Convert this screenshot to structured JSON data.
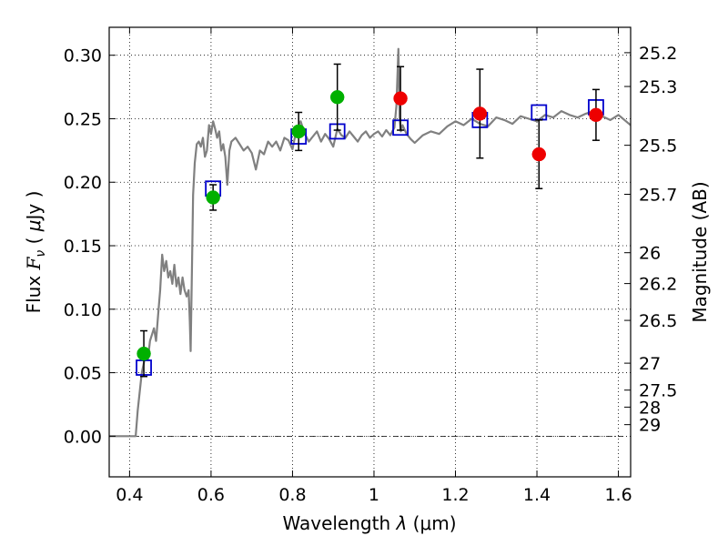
{
  "chart_data": {
    "type": "scatter",
    "xlabel": "Wavelength  λ (μm)",
    "ylabel": "Flux  F_ν  ( μJy )",
    "ylabel_parts": {
      "prefix": "Flux  ",
      "symbol": "F",
      "subscript": "ν",
      "open": "  ( ",
      "mu": "μ",
      "unit": "Jy )"
    },
    "xlabel_parts": {
      "prefix": "Wavelength  ",
      "lambda": "λ",
      "unit": " (μm)"
    },
    "y2label": "Magnitude (AB)",
    "xlim": [
      0.35,
      1.63
    ],
    "ylim": [
      -0.032,
      0.322
    ],
    "grid": true,
    "x_ticks": [
      0.4,
      0.6,
      0.8,
      1.0,
      1.2,
      1.4,
      1.6
    ],
    "x_tick_labels": [
      "0.4",
      "0.6",
      "0.8",
      "1",
      "1.2",
      "1.4",
      "1.6"
    ],
    "y_ticks": [
      0.0,
      0.05,
      0.1,
      0.15,
      0.2,
      0.25,
      0.3
    ],
    "y_tick_labels": [
      "0.00",
      "0.05",
      "0.10",
      "0.15",
      "0.20",
      "0.25",
      "0.30"
    ],
    "mag_ticks": [
      {
        "label": "25.2",
        "flux": 0.302
      },
      {
        "label": "25.3",
        "flux": 0.2754
      },
      {
        "label": "25.5",
        "flux": 0.2291
      },
      {
        "label": "25.7",
        "flux": 0.1905
      },
      {
        "label": "26",
        "flux": 0.1445
      },
      {
        "label": "26.2",
        "flux": 0.1202
      },
      {
        "label": "26.5",
        "flux": 0.0912
      },
      {
        "label": "27",
        "flux": 0.0575
      },
      {
        "label": "27.5",
        "flux": 0.0363
      },
      {
        "label": "28",
        "flux": 0.0229
      },
      {
        "label": "29",
        "flux": 0.0091
      }
    ],
    "model_spectrum": {
      "name": "model",
      "color": "#808080",
      "x": [
        0.35,
        0.41,
        0.415,
        0.42,
        0.43,
        0.44,
        0.445,
        0.45,
        0.46,
        0.465,
        0.47,
        0.475,
        0.48,
        0.485,
        0.49,
        0.495,
        0.5,
        0.505,
        0.51,
        0.515,
        0.52,
        0.525,
        0.53,
        0.535,
        0.54,
        0.545,
        0.548,
        0.55,
        0.553,
        0.556,
        0.56,
        0.565,
        0.57,
        0.575,
        0.58,
        0.585,
        0.59,
        0.595,
        0.6,
        0.605,
        0.61,
        0.615,
        0.62,
        0.625,
        0.63,
        0.635,
        0.64,
        0.645,
        0.65,
        0.66,
        0.67,
        0.68,
        0.69,
        0.7,
        0.71,
        0.72,
        0.73,
        0.74,
        0.75,
        0.76,
        0.77,
        0.78,
        0.79,
        0.8,
        0.81,
        0.82,
        0.83,
        0.84,
        0.85,
        0.86,
        0.87,
        0.88,
        0.89,
        0.9,
        0.91,
        0.92,
        0.93,
        0.94,
        0.95,
        0.96,
        0.97,
        0.98,
        0.99,
        1.0,
        1.01,
        1.02,
        1.03,
        1.04,
        1.05,
        1.055,
        1.06,
        1.063,
        1.066,
        1.07,
        1.08,
        1.09,
        1.1,
        1.12,
        1.14,
        1.16,
        1.18,
        1.2,
        1.22,
        1.24,
        1.26,
        1.28,
        1.3,
        1.32,
        1.34,
        1.36,
        1.38,
        1.4,
        1.42,
        1.44,
        1.46,
        1.48,
        1.5,
        1.52,
        1.54,
        1.56,
        1.58,
        1.6,
        1.63
      ],
      "y": [
        0.0,
        0.0,
        0.0,
        0.02,
        0.05,
        0.065,
        0.06,
        0.075,
        0.085,
        0.075,
        0.095,
        0.115,
        0.143,
        0.13,
        0.138,
        0.125,
        0.13,
        0.12,
        0.135,
        0.118,
        0.125,
        0.112,
        0.125,
        0.115,
        0.11,
        0.115,
        0.09,
        0.067,
        0.13,
        0.19,
        0.215,
        0.23,
        0.232,
        0.228,
        0.235,
        0.22,
        0.225,
        0.245,
        0.238,
        0.248,
        0.242,
        0.235,
        0.24,
        0.225,
        0.23,
        0.22,
        0.198,
        0.225,
        0.232,
        0.235,
        0.23,
        0.225,
        0.228,
        0.223,
        0.21,
        0.225,
        0.222,
        0.232,
        0.228,
        0.232,
        0.225,
        0.235,
        0.233,
        0.226,
        0.242,
        0.248,
        0.238,
        0.232,
        0.236,
        0.24,
        0.232,
        0.238,
        0.234,
        0.228,
        0.242,
        0.237,
        0.235,
        0.24,
        0.236,
        0.232,
        0.237,
        0.24,
        0.235,
        0.238,
        0.24,
        0.236,
        0.241,
        0.237,
        0.243,
        0.26,
        0.305,
        0.25,
        0.24,
        0.245,
        0.238,
        0.234,
        0.231,
        0.237,
        0.24,
        0.238,
        0.244,
        0.248,
        0.245,
        0.25,
        0.246,
        0.244,
        0.251,
        0.249,
        0.246,
        0.252,
        0.25,
        0.248,
        0.253,
        0.251,
        0.256,
        0.253,
        0.251,
        0.254,
        0.256,
        0.252,
        0.249,
        0.253,
        0.245
      ]
    },
    "series": [
      {
        "name": "model-photometry",
        "marker": "square",
        "color": "#0000cc",
        "x": [
          0.435,
          0.605,
          0.815,
          0.91,
          1.065,
          1.26,
          1.405,
          1.545
        ],
        "y": [
          0.054,
          0.195,
          0.236,
          0.24,
          0.243,
          0.249,
          0.255,
          0.259
        ]
      },
      {
        "name": "green-observations",
        "marker": "circle",
        "color": "#00b000",
        "x": [
          0.435,
          0.605,
          0.815,
          0.91
        ],
        "y": [
          0.065,
          0.188,
          0.24,
          0.267
        ],
        "err": [
          0.018,
          0.01,
          0.015,
          0.026
        ]
      },
      {
        "name": "red-observations",
        "marker": "circle",
        "color": "#ee0000",
        "x": [
          1.065,
          1.26,
          1.405,
          1.545
        ],
        "y": [
          0.266,
          0.254,
          0.222,
          0.253
        ],
        "err": [
          0.025,
          0.035,
          0.027,
          0.02
        ]
      }
    ]
  }
}
